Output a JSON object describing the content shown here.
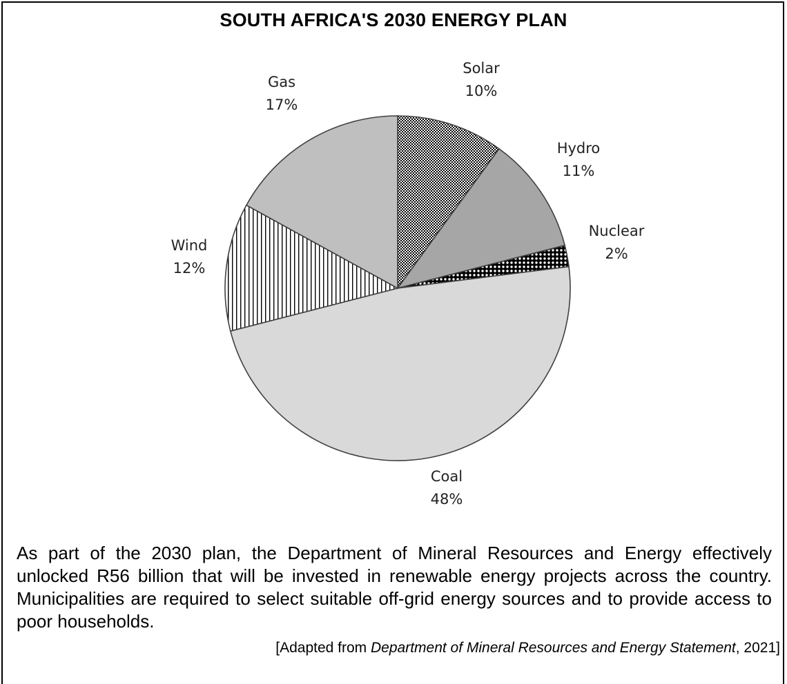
{
  "chart_data": {
    "type": "pie",
    "title": "SOUTH AFRICA'S 2030 ENERGY PLAN",
    "slices": [
      {
        "label": "Solar",
        "value": 10,
        "pct_label": "10%",
        "fill": "pattern-checker"
      },
      {
        "label": "Hydro",
        "value": 11,
        "pct_label": "11%",
        "fill": "#a6a6a6"
      },
      {
        "label": "Nuclear",
        "value": 2,
        "pct_label": "2%",
        "fill": "pattern-dots"
      },
      {
        "label": "Coal",
        "value": 48,
        "pct_label": "48%",
        "fill": "#d9d9d9"
      },
      {
        "label": "Wind",
        "value": 12,
        "pct_label": "12%",
        "fill": "pattern-vlines"
      },
      {
        "label": "Gas",
        "value": 17,
        "pct_label": "17%",
        "fill": "#bfbfbf"
      }
    ],
    "start": "12 o'clock",
    "direction": "clockwise"
  },
  "paragraph": "As part of the 2030 plan, the Department of Mineral Resources and Energy effectively unlocked R56 billion that will be invested in renewable energy projects across the country. Municipalities are required to select suitable off-grid energy sources and to provide access to poor households.",
  "source": {
    "prefix": "[Adapted from ",
    "title": "Department of Mineral Resources and Energy Statement",
    "suffix": ", 2021]"
  }
}
